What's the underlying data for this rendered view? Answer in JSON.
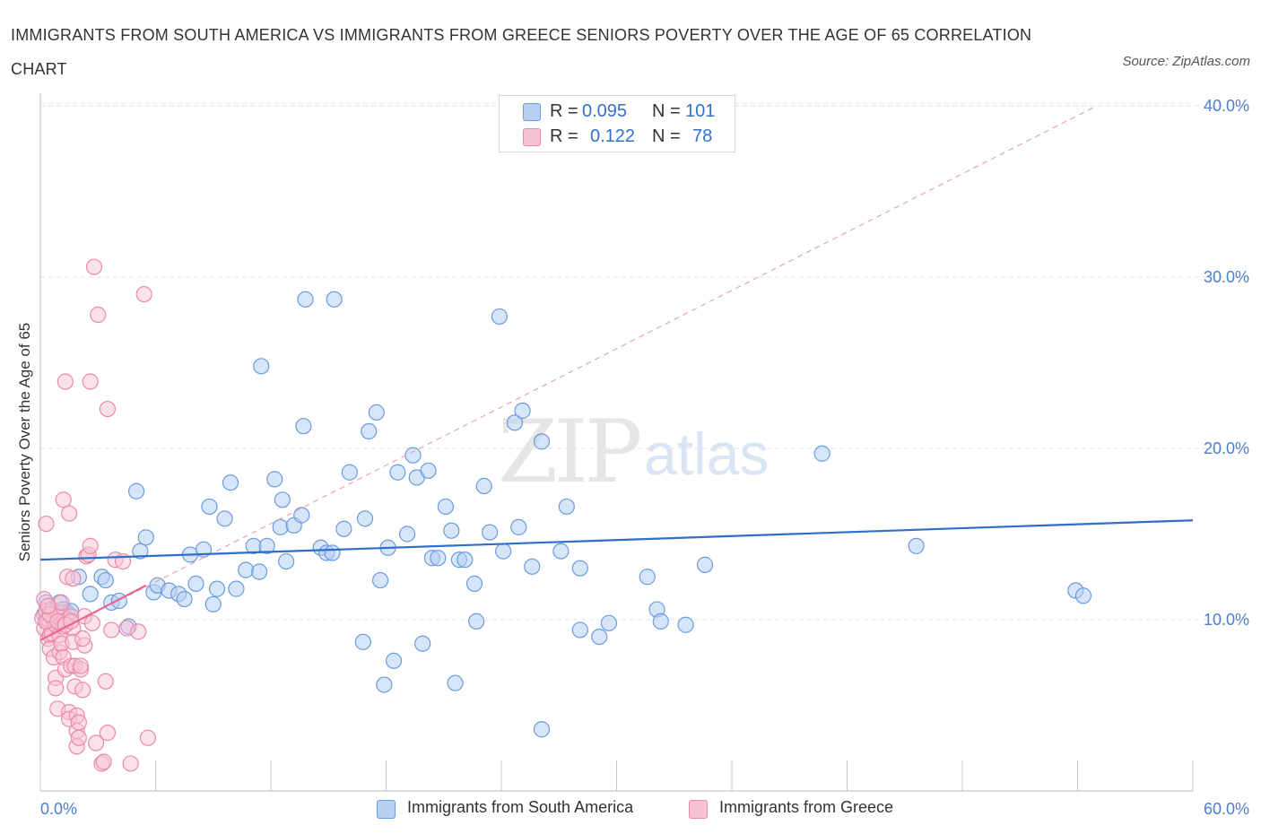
{
  "title": "IMMIGRANTS FROM SOUTH AMERICA VS IMMIGRANTS FROM GREECE SENIORS POVERTY OVER THE AGE OF 65 CORRELATION CHART",
  "source": "Source: ZipAtlas.com",
  "watermark": {
    "zip": "ZIP",
    "atlas": "atlas"
  },
  "stats": {
    "r_label": "R =",
    "n_label": "N =",
    "rows": [
      {
        "r": "0.095",
        "n": "101"
      },
      {
        "r": "0.122",
        "n": "78"
      }
    ]
  },
  "legend": {
    "series1": "Immigrants from South America",
    "series2": "Immigrants from Greece"
  },
  "colors": {
    "blue_fill": "#b7d0f2",
    "blue_stroke": "#6b9be0",
    "blue_line": "#2f6fca",
    "pink_fill": "#f7c3d3",
    "pink_stroke": "#ea8aa8",
    "pink_line": "#e8608f",
    "accent_text": "#3370c9"
  },
  "chart_data": {
    "type": "scatter",
    "title": "IMMIGRANTS FROM SOUTH AMERICA VS IMMIGRANTS FROM GREECE SENIORS POVERTY OVER THE AGE OF 65 CORRELATION CHART",
    "xlabel": "",
    "ylabel": "Seniors Poverty Over the Age of 65",
    "xlim": [
      0,
      60
    ],
    "ylim": [
      0,
      40
    ],
    "x_tick_labels": [
      "0.0%",
      "60.0%"
    ],
    "y_tick_labels": [
      "10.0%",
      "20.0%",
      "30.0%",
      "40.0%"
    ],
    "y_ticks": [
      10,
      20,
      30,
      40
    ],
    "grid": true,
    "legend_position": "bottom",
    "series": [
      {
        "name": "Immigrants from South America",
        "color": "#6b9be0",
        "R": 0.095,
        "N": 101,
        "trend": {
          "x": [
            0,
            60
          ],
          "y": [
            13.5,
            15.8
          ],
          "style": "solid"
        },
        "points": [
          [
            0.2,
            10.3
          ],
          [
            0.3,
            11.0
          ],
          [
            0.4,
            9.8
          ],
          [
            0.6,
            10.5
          ],
          [
            0.7,
            10.1
          ],
          [
            0.8,
            9.6
          ],
          [
            1.0,
            11.0
          ],
          [
            1.2,
            10.6
          ],
          [
            1.4,
            10.4
          ],
          [
            1.6,
            10.5
          ],
          [
            2.0,
            12.5
          ],
          [
            2.6,
            11.5
          ],
          [
            3.2,
            12.5
          ],
          [
            3.4,
            12.3
          ],
          [
            3.7,
            11.0
          ],
          [
            4.1,
            11.1
          ],
          [
            4.6,
            9.6
          ],
          [
            5.0,
            17.5
          ],
          [
            5.2,
            14.0
          ],
          [
            5.5,
            14.8
          ],
          [
            5.9,
            11.6
          ],
          [
            6.1,
            12.0
          ],
          [
            6.7,
            11.7
          ],
          [
            7.2,
            11.5
          ],
          [
            7.5,
            11.2
          ],
          [
            7.8,
            13.8
          ],
          [
            8.1,
            12.1
          ],
          [
            8.5,
            14.1
          ],
          [
            8.8,
            16.6
          ],
          [
            9.0,
            10.9
          ],
          [
            9.2,
            11.8
          ],
          [
            9.6,
            15.9
          ],
          [
            9.9,
            18.0
          ],
          [
            10.2,
            11.8
          ],
          [
            10.7,
            12.9
          ],
          [
            11.1,
            14.3
          ],
          [
            11.4,
            12.8
          ],
          [
            11.5,
            24.8
          ],
          [
            11.8,
            14.3
          ],
          [
            12.2,
            18.2
          ],
          [
            12.5,
            15.4
          ],
          [
            12.6,
            17.0
          ],
          [
            12.8,
            13.4
          ],
          [
            13.2,
            15.5
          ],
          [
            13.6,
            16.1
          ],
          [
            13.7,
            21.3
          ],
          [
            13.8,
            28.7
          ],
          [
            14.6,
            14.2
          ],
          [
            14.9,
            13.9
          ],
          [
            15.2,
            13.9
          ],
          [
            15.3,
            28.7
          ],
          [
            15.8,
            15.3
          ],
          [
            16.1,
            18.6
          ],
          [
            16.8,
            8.7
          ],
          [
            16.9,
            15.9
          ],
          [
            17.1,
            21.0
          ],
          [
            17.5,
            22.1
          ],
          [
            17.7,
            12.3
          ],
          [
            17.9,
            6.2
          ],
          [
            18.1,
            14.2
          ],
          [
            18.4,
            7.6
          ],
          [
            18.6,
            18.6
          ],
          [
            19.1,
            15.0
          ],
          [
            19.4,
            19.6
          ],
          [
            19.6,
            18.3
          ],
          [
            19.9,
            8.6
          ],
          [
            20.2,
            18.7
          ],
          [
            20.4,
            13.6
          ],
          [
            20.7,
            13.6
          ],
          [
            21.1,
            16.6
          ],
          [
            21.4,
            15.2
          ],
          [
            21.6,
            6.3
          ],
          [
            21.8,
            13.5
          ],
          [
            22.1,
            13.5
          ],
          [
            22.6,
            12.1
          ],
          [
            22.7,
            9.9
          ],
          [
            23.1,
            17.8
          ],
          [
            23.4,
            15.1
          ],
          [
            23.9,
            27.7
          ],
          [
            24.1,
            14.0
          ],
          [
            24.7,
            21.5
          ],
          [
            24.9,
            15.4
          ],
          [
            25.1,
            22.2
          ],
          [
            25.6,
            13.1
          ],
          [
            26.1,
            20.4
          ],
          [
            26.1,
            3.6
          ],
          [
            27.1,
            14.0
          ],
          [
            27.4,
            16.6
          ],
          [
            28.1,
            13.0
          ],
          [
            28.1,
            9.4
          ],
          [
            29.1,
            9.0
          ],
          [
            29.6,
            9.8
          ],
          [
            31.6,
            12.5
          ],
          [
            32.1,
            10.6
          ],
          [
            32.3,
            9.9
          ],
          [
            33.6,
            9.7
          ],
          [
            34.6,
            13.2
          ],
          [
            40.7,
            19.7
          ],
          [
            45.6,
            14.3
          ],
          [
            53.9,
            11.7
          ],
          [
            54.3,
            11.4
          ]
        ]
      },
      {
        "name": "Immigrants from Greece",
        "color": "#ea8aa8",
        "R": 0.122,
        "N": 78,
        "trend": {
          "x": [
            0,
            55
          ],
          "y": [
            8.8,
            40.0
          ],
          "style": "dashed"
        },
        "trend_solid": {
          "x": [
            0,
            5.5
          ],
          "y": [
            8.8,
            12.0
          ]
        },
        "points": [
          [
            0.1,
            10.1
          ],
          [
            0.2,
            11.2
          ],
          [
            0.2,
            9.5
          ],
          [
            0.3,
            15.6
          ],
          [
            0.3,
            10.5
          ],
          [
            0.4,
            8.9
          ],
          [
            0.4,
            10.0
          ],
          [
            0.5,
            9.1
          ],
          [
            0.5,
            8.3
          ],
          [
            0.6,
            10.6
          ],
          [
            0.6,
            9.2
          ],
          [
            0.7,
            10.0
          ],
          [
            0.7,
            7.8
          ],
          [
            0.8,
            9.7
          ],
          [
            0.8,
            6.6
          ],
          [
            0.8,
            6.0
          ],
          [
            0.9,
            10.2
          ],
          [
            0.9,
            4.8
          ],
          [
            1.0,
            9.1
          ],
          [
            1.0,
            8.1
          ],
          [
            1.1,
            10.4
          ],
          [
            1.1,
            11.0
          ],
          [
            1.1,
            8.6
          ],
          [
            1.2,
            17.0
          ],
          [
            1.2,
            9.6
          ],
          [
            1.2,
            7.8
          ],
          [
            1.3,
            7.1
          ],
          [
            1.3,
            23.9
          ],
          [
            1.4,
            12.5
          ],
          [
            1.4,
            10.0
          ],
          [
            1.5,
            4.6
          ],
          [
            1.5,
            4.2
          ],
          [
            1.5,
            16.2
          ],
          [
            1.6,
            10.2
          ],
          [
            1.6,
            7.3
          ],
          [
            1.7,
            12.4
          ],
          [
            1.7,
            9.5
          ],
          [
            1.7,
            8.7
          ],
          [
            1.8,
            7.3
          ],
          [
            1.8,
            6.1
          ],
          [
            1.9,
            4.4
          ],
          [
            1.9,
            3.5
          ],
          [
            1.9,
            2.6
          ],
          [
            2.0,
            4.0
          ],
          [
            2.0,
            3.1
          ],
          [
            2.1,
            7.1
          ],
          [
            2.1,
            7.3
          ],
          [
            2.2,
            5.9
          ],
          [
            2.3,
            10.2
          ],
          [
            2.3,
            8.5
          ],
          [
            2.4,
            13.7
          ],
          [
            2.5,
            13.8
          ],
          [
            2.6,
            14.3
          ],
          [
            2.6,
            23.9
          ],
          [
            2.7,
            9.8
          ],
          [
            2.8,
            30.6
          ],
          [
            2.9,
            2.8
          ],
          [
            3.0,
            27.8
          ],
          [
            3.2,
            1.6
          ],
          [
            3.3,
            1.7
          ],
          [
            3.4,
            6.4
          ],
          [
            3.5,
            22.3
          ],
          [
            3.5,
            3.4
          ],
          [
            3.7,
            9.4
          ],
          [
            3.9,
            13.5
          ],
          [
            4.3,
            13.4
          ],
          [
            4.5,
            9.5
          ],
          [
            4.7,
            1.6
          ],
          [
            5.1,
            9.3
          ],
          [
            5.4,
            29.0
          ],
          [
            5.6,
            3.1
          ],
          [
            0.3,
            9.9
          ],
          [
            0.5,
            10.3
          ],
          [
            0.9,
            9.9
          ],
          [
            1.3,
            9.7
          ],
          [
            1.6,
            9.9
          ],
          [
            2.2,
            8.9
          ],
          [
            0.4,
            10.8
          ]
        ]
      }
    ]
  }
}
